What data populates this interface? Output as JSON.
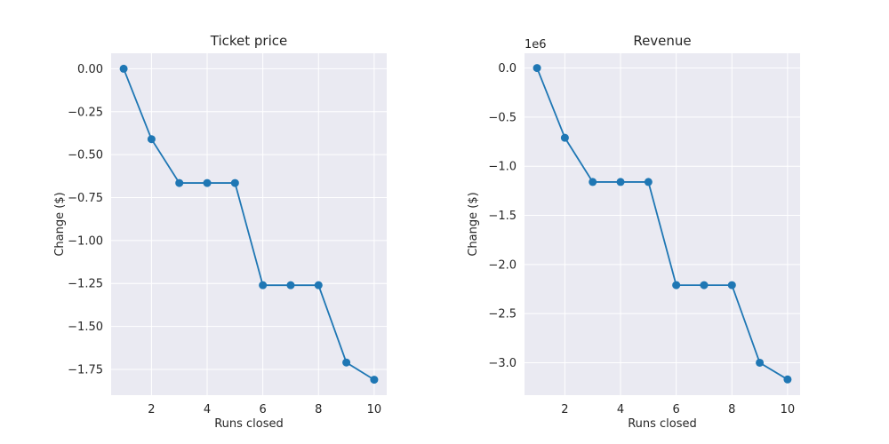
{
  "chart_data": [
    {
      "type": "line",
      "title": "Ticket price",
      "xlabel": "Runs closed",
      "ylabel": "Change ($)",
      "x": [
        1,
        2,
        3,
        4,
        5,
        6,
        7,
        8,
        9,
        10
      ],
      "series": [
        {
          "values": [
            0.0,
            -0.41,
            -0.665,
            -0.665,
            -0.665,
            -1.26,
            -1.26,
            -1.26,
            -1.71,
            -1.81
          ]
        }
      ],
      "xlim": [
        0.55,
        10.45
      ],
      "ylim": [
        -1.9,
        0.09
      ],
      "xticks": [
        2,
        4,
        6,
        8,
        10
      ],
      "xtick_labels": [
        "2",
        "4",
        "6",
        "8",
        "10"
      ],
      "yticks": [
        0.0,
        -0.25,
        -0.5,
        -0.75,
        -1.0,
        -1.25,
        -1.5,
        -1.75
      ],
      "ytick_labels": [
        "0.00",
        "−0.25",
        "−0.50",
        "−0.75",
        "−1.00",
        "−1.25",
        "−1.50",
        "−1.75"
      ],
      "offset_text": "",
      "grid": true,
      "line_color": "#1f77b4"
    },
    {
      "type": "line",
      "title": "Revenue",
      "xlabel": "Runs closed",
      "ylabel": "Change ($)",
      "x": [
        1,
        2,
        3,
        4,
        5,
        6,
        7,
        8,
        9,
        10
      ],
      "series": [
        {
          "values": [
            0,
            -710000,
            -1160000,
            -1160000,
            -1160000,
            -2210000,
            -2210000,
            -2210000,
            -3000000,
            -3170000
          ]
        }
      ],
      "xlim": [
        0.55,
        10.45
      ],
      "ylim": [
        -3.33,
        0.15
      ],
      "yscale_factor": 1000000,
      "xticks": [
        2,
        4,
        6,
        8,
        10
      ],
      "xtick_labels": [
        "2",
        "4",
        "6",
        "8",
        "10"
      ],
      "yticks": [
        0.0,
        -0.5,
        -1.0,
        -1.5,
        -2.0,
        -2.5,
        -3.0
      ],
      "ytick_labels": [
        "0.0",
        "−0.5",
        "−1.0",
        "−1.5",
        "−2.0",
        "−2.5",
        "−3.0"
      ],
      "offset_text": "1e6",
      "grid": true,
      "line_color": "#1f77b4"
    }
  ]
}
